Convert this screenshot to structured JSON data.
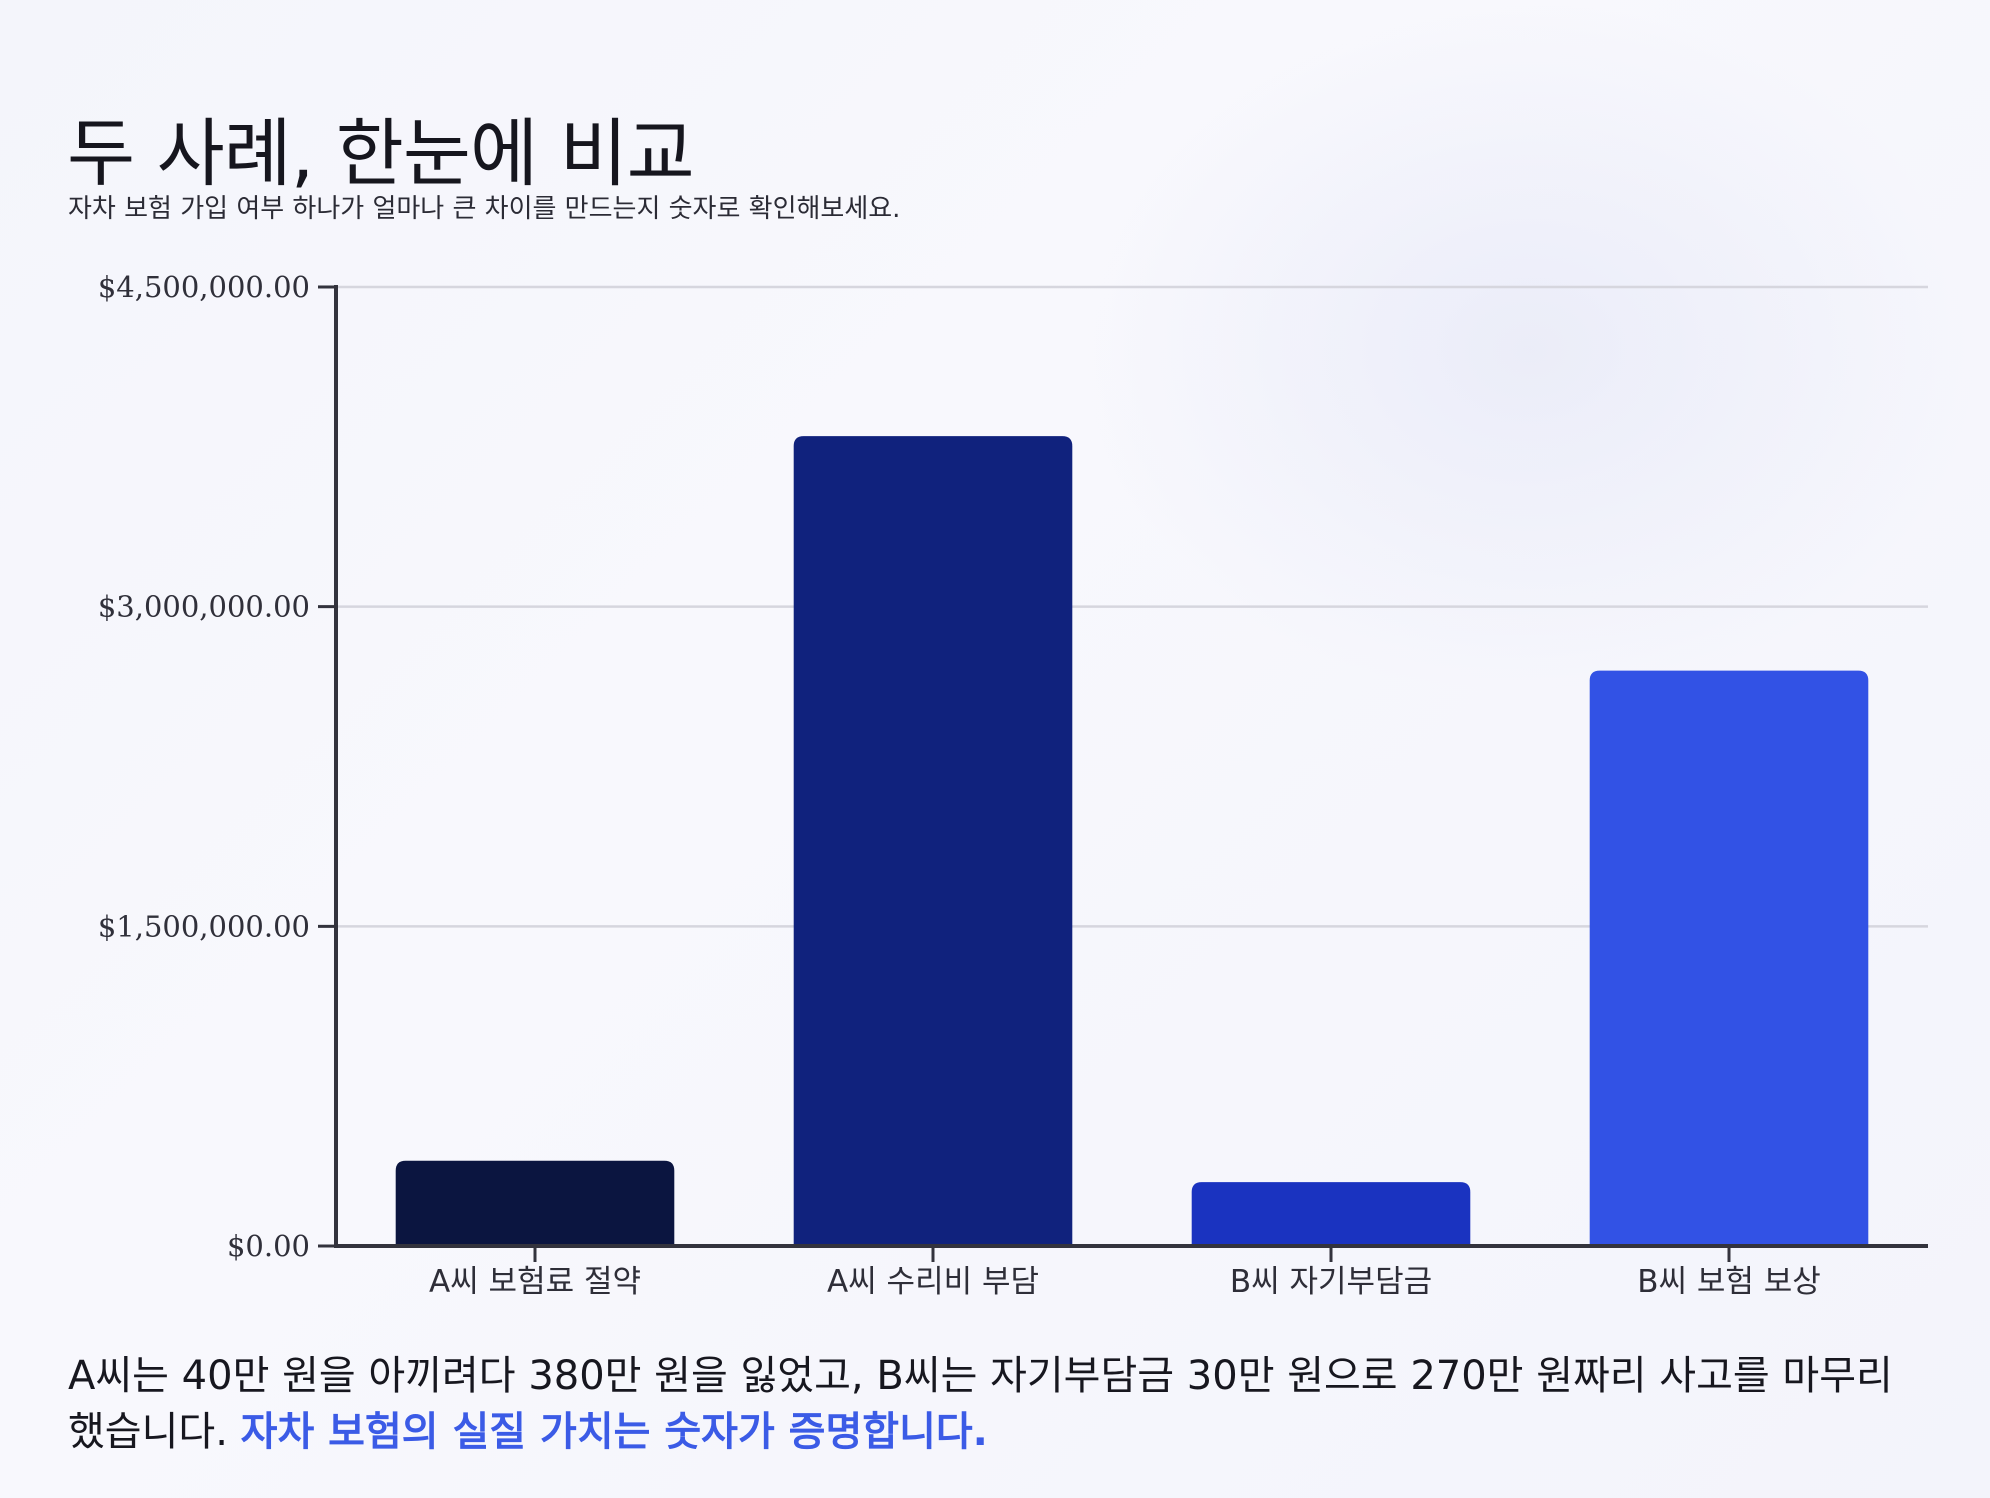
{
  "header": {
    "title": "두 사례, 한눈에 비교",
    "subtitle": "자차 보험 가입 여부 하나가 얼마나 큰 차이를 만드는지 숫자로 확인해보세요."
  },
  "chart_data": {
    "type": "bar",
    "categories": [
      "A씨 보험료 절약",
      "A씨 수리비 부담",
      "B씨 자기부담금",
      "B씨 보험 보상"
    ],
    "values": [
      400000,
      3800000,
      300000,
      2700000
    ],
    "colors": [
      "#0b1540",
      "#10227d",
      "#1a33c0",
      "#3252e5"
    ],
    "ylim": [
      0,
      4500000
    ],
    "yticks": [
      0,
      1500000,
      3000000,
      4500000
    ],
    "ytick_labels": [
      "$0.00",
      "$1,500,000.00",
      "$3,000,000.00",
      "$4,500,000.00"
    ],
    "title": "",
    "xlabel": "",
    "ylabel": "",
    "grid": true,
    "legend": "none"
  },
  "footer": {
    "text": "A씨는 40만 원을 아끼려다 380만 원을 잃었고, B씨는 자기부담금 30만 원으로 270만 원짜리 사고를 마무리했습니다. ",
    "emphasis": "자차 보험의 실질 가치는 숫자가 증명합니다."
  },
  "colors": {
    "background": "#f7f7fc",
    "accent": "#3b5be6",
    "axis": "#33333d",
    "grid": "#d6d6de"
  }
}
